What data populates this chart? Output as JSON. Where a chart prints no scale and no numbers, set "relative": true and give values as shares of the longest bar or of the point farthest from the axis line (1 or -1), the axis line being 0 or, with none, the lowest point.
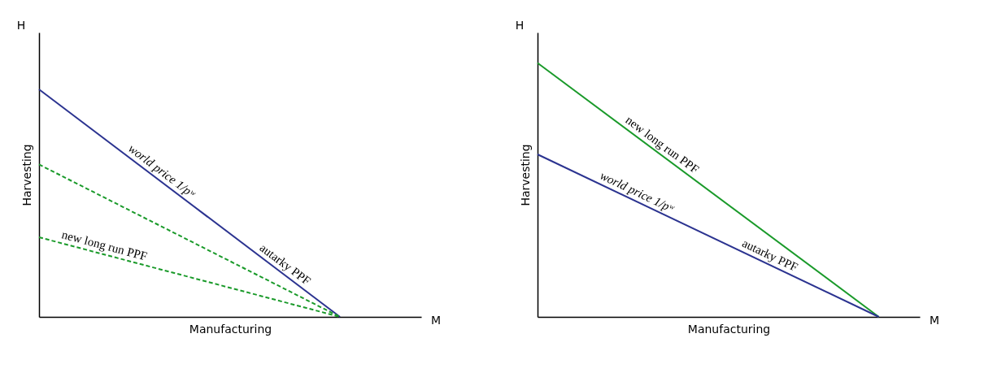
{
  "chart_data": [
    {
      "type": "line",
      "relative": true,
      "xlabel": "Manufacturing",
      "ylabel": "Harvesting",
      "legend": false,
      "grid": false,
      "tick_labels": false,
      "marker": "none",
      "categories": [
        null,
        null
      ],
      "series": [
        {
          "color": "#2b3390",
          "values": [
            1,
            0
          ],
          "line_style": "solid"
        },
        {
          "color": "#1a9a2a",
          "values": [
            0.67,
            0
          ],
          "line_style": "dashed"
        },
        {
          "color": "#1a9a2a",
          "values": [
            0.35,
            0
          ],
          "line_style": "dashed"
        }
      ],
      "annotations": [
        "H",
        "M",
        "world price 1/pʷ",
        "autarky PPF",
        "new long run PPF"
      ]
    },
    {
      "type": "line",
      "relative": true,
      "xlabel": "Manufacturing",
      "ylabel": "Harvesting",
      "legend": false,
      "grid": false,
      "tick_labels": false,
      "marker": "none",
      "categories": [
        null,
        null
      ],
      "series": [
        {
          "color": "#1a9a2a",
          "values": [
            1,
            0
          ],
          "line_style": "solid"
        },
        {
          "color": "#2b3390",
          "values": [
            0.64,
            0
          ],
          "line_style": "solid"
        }
      ],
      "annotations": [
        "H",
        "M",
        "new long run PPF",
        "world price 1/pʷ",
        "autarky PPF"
      ]
    }
  ]
}
